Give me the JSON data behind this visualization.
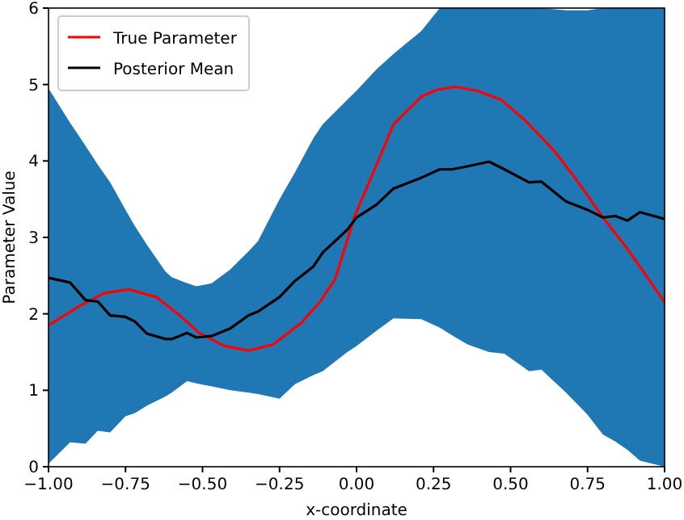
{
  "chart_data": {
    "type": "line",
    "xlabel": "x-coordinate",
    "ylabel": "Parameter Value",
    "xlim": [
      -1,
      1
    ],
    "ylim": [
      0,
      6
    ],
    "xticks": [
      {
        "value": -1,
        "label": "−1.00"
      },
      {
        "value": -0.75,
        "label": "−0.75"
      },
      {
        "value": -0.5,
        "label": "−0.50"
      },
      {
        "value": -0.25,
        "label": "−0.25"
      },
      {
        "value": 0,
        "label": "0.00"
      },
      {
        "value": 0.25,
        "label": "0.25"
      },
      {
        "value": 0.5,
        "label": "0.50"
      },
      {
        "value": 0.75,
        "label": "0.75"
      },
      {
        "value": 1,
        "label": "1.00"
      }
    ],
    "yticks": [
      0,
      1,
      2,
      3,
      4,
      5,
      6
    ],
    "grid": false,
    "legend": "top left",
    "marker": "none",
    "line_style": "solid",
    "series": [
      {
        "name": "True Parameter",
        "color": "#ff0000",
        "x": [
          -1,
          -0.9,
          -0.82,
          -0.74,
          -0.65,
          -0.58,
          -0.51,
          -0.43,
          -0.35,
          -0.27,
          -0.18,
          -0.12,
          -0.07,
          -0.004,
          0.06,
          0.12,
          0.21,
          0.26,
          0.32,
          0.39,
          0.47,
          0.55,
          0.64,
          0.72,
          0.8,
          0.87,
          0.93,
          1
        ],
        "values": [
          1.85,
          2.1,
          2.27,
          2.32,
          2.22,
          2.0,
          1.75,
          1.58,
          1.52,
          1.6,
          1.88,
          2.15,
          2.45,
          3.3,
          3.9,
          4.48,
          4.84,
          4.93,
          4.97,
          4.92,
          4.8,
          4.52,
          4.14,
          3.72,
          3.26,
          2.9,
          2.56,
          2.15
        ]
      },
      {
        "name": "Posterior Mean",
        "color": "#000000",
        "x": [
          -1,
          -0.93,
          -0.88,
          -0.84,
          -0.8,
          -0.75,
          -0.72,
          -0.68,
          -0.62,
          -0.6,
          -0.55,
          -0.52,
          -0.47,
          -0.41,
          -0.35,
          -0.32,
          -0.25,
          -0.2,
          -0.14,
          -0.11,
          -0.03,
          0,
          0.065,
          0.12,
          0.21,
          0.27,
          0.31,
          0.36,
          0.43,
          0.48,
          0.56,
          0.6,
          0.68,
          0.75,
          0.8,
          0.84,
          0.88,
          0.92,
          1
        ],
        "values": [
          2.47,
          2.41,
          2.18,
          2.16,
          1.98,
          1.96,
          1.9,
          1.74,
          1.67,
          1.67,
          1.75,
          1.69,
          1.71,
          1.81,
          1.98,
          2.03,
          2.22,
          2.43,
          2.62,
          2.8,
          3.1,
          3.26,
          3.43,
          3.64,
          3.78,
          3.89,
          3.89,
          3.93,
          3.99,
          3.89,
          3.72,
          3.73,
          3.47,
          3.36,
          3.26,
          3.28,
          3.22,
          3.33,
          3.24
        ],
        "lower": [
          0.04,
          0.32,
          0.3,
          0.47,
          0.45,
          0.66,
          0.7,
          0.8,
          0.92,
          0.97,
          1.12,
          1.09,
          1.05,
          1.0,
          0.97,
          0.95,
          0.89,
          1.08,
          1.2,
          1.25,
          1.5,
          1.58,
          1.78,
          1.94,
          1.93,
          1.82,
          1.72,
          1.6,
          1.5,
          1.48,
          1.25,
          1.27,
          0.97,
          0.68,
          0.42,
          0.33,
          0.22,
          0.08,
          0
        ],
        "upper": [
          4.95,
          4.5,
          4.2,
          3.95,
          3.72,
          3.36,
          3.15,
          2.9,
          2.55,
          2.48,
          2.4,
          2.36,
          2.4,
          2.58,
          2.82,
          2.95,
          3.5,
          3.85,
          4.3,
          4.48,
          4.8,
          4.92,
          5.2,
          5.4,
          5.7,
          6,
          6,
          6,
          6,
          6,
          6,
          6,
          5.97,
          5.97,
          6,
          6,
          6,
          6,
          6
        ]
      }
    ]
  }
}
